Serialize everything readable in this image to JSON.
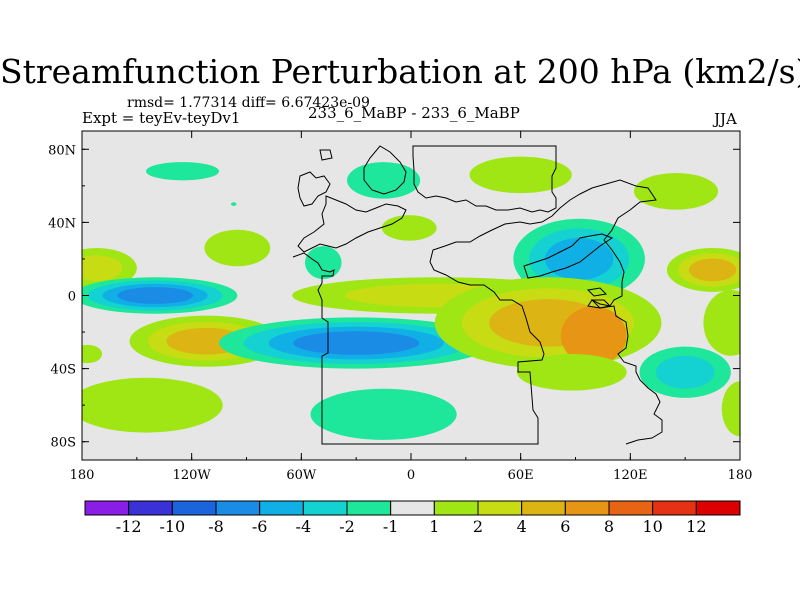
{
  "header": {
    "title": "Streamfunction Perturbation at 200 hPa (km2/s)",
    "rmsd_line": "rmsd= 1.77314 diff= 6.67423e-09",
    "left_label": "Expt = teyEv-teyDv1",
    "center_label": "233_6_MaBP - 233_6_MaBP",
    "right_label": "JJA"
  },
  "chart_data": {
    "type": "heatmap",
    "title": "Streamfunction Perturbation at 200 hPa (km2/s)",
    "xlabel": "",
    "ylabel": "",
    "xlim": [
      -180,
      180
    ],
    "ylim": [
      -90,
      90
    ],
    "x_ticks": [
      {
        "value": -180,
        "label": "180"
      },
      {
        "value": -120,
        "label": "120W"
      },
      {
        "value": -60,
        "label": "60W"
      },
      {
        "value": 0,
        "label": "0"
      },
      {
        "value": 60,
        "label": "60E"
      },
      {
        "value": 120,
        "label": "120E"
      },
      {
        "value": 180,
        "label": "180"
      }
    ],
    "y_ticks": [
      {
        "value": 80,
        "label": "80N"
      },
      {
        "value": 40,
        "label": "40N"
      },
      {
        "value": 0,
        "label": "0"
      },
      {
        "value": -40,
        "label": "40S"
      },
      {
        "value": -80,
        "label": "80S"
      }
    ],
    "levels": [
      -12,
      -10,
      -8,
      -6,
      -4,
      -2,
      -1,
      1,
      2,
      4,
      6,
      8,
      10,
      12
    ],
    "colorbar_colors": [
      "#8a1ee6",
      "#3a32d6",
      "#1a64dc",
      "#1a8ce6",
      "#10b0e6",
      "#14d2d2",
      "#1ee69a",
      "#e6e6e6",
      "#a0e614",
      "#c8dc14",
      "#dcb414",
      "#e69614",
      "#e66414",
      "#e63214",
      "#dc0000"
    ],
    "background_color": "#e6e6e6",
    "features": [
      {
        "lon": -125,
        "lat": 68,
        "rx": 20,
        "ry": 5,
        "levels": [
          -1
        ]
      },
      {
        "lon": -97,
        "lat": 50,
        "rx": 1.5,
        "ry": 1,
        "levels": [
          -1
        ]
      },
      {
        "lon": -15,
        "lat": 63,
        "rx": 20,
        "ry": 10,
        "levels": [
          -1
        ]
      },
      {
        "lon": -1,
        "lat": 37,
        "rx": 15,
        "ry": 7,
        "levels": [
          1
        ]
      },
      {
        "lon": 60,
        "lat": 66,
        "rx": 28,
        "ry": 10,
        "levels": [
          1
        ]
      },
      {
        "lon": 145,
        "lat": 57,
        "rx": 23,
        "ry": 10,
        "levels": [
          1
        ]
      },
      {
        "lon": -95,
        "lat": 26,
        "rx": 18,
        "ry": 10,
        "levels": [
          1
        ]
      },
      {
        "lon": -172,
        "lat": 15,
        "rx": 22,
        "ry": 11,
        "levels": [
          1,
          2
        ]
      },
      {
        "lon": -48,
        "lat": 18,
        "rx": 10,
        "ry": 9,
        "levels": [
          -1
        ]
      },
      {
        "lon": 92,
        "lat": 20,
        "rx": 36,
        "ry": 22,
        "levels": [
          -1,
          -2,
          -4
        ]
      },
      {
        "lon": 165,
        "lat": 14,
        "rx": 25,
        "ry": 12,
        "levels": [
          1,
          2,
          4
        ]
      },
      {
        "lon": -140,
        "lat": 0,
        "rx": 45,
        "ry": 10,
        "levels": [
          -1,
          -2,
          -4,
          -6
        ]
      },
      {
        "lon": 15,
        "lat": 0,
        "rx": 80,
        "ry": 10,
        "levels": [
          1,
          2
        ]
      },
      {
        "lon": -112,
        "lat": -25,
        "rx": 42,
        "ry": 14,
        "levels": [
          1,
          2,
          4
        ]
      },
      {
        "lon": -30,
        "lat": -26,
        "rx": 75,
        "ry": 14,
        "levels": [
          -1,
          -2,
          -4,
          -6
        ]
      },
      {
        "lon": 75,
        "lat": -15,
        "rx": 62,
        "ry": 25,
        "levels": [
          1,
          2,
          4
        ]
      },
      {
        "lon": 100,
        "lat": -22,
        "rx": 18,
        "ry": 16,
        "levels": [
          6
        ]
      },
      {
        "lon": 175,
        "lat": -15,
        "rx": 15,
        "ry": 18,
        "levels": [
          1
        ]
      },
      {
        "lon": -177,
        "lat": -32,
        "rx": 8,
        "ry": 5,
        "levels": [
          1
        ]
      },
      {
        "lon": 150,
        "lat": -42,
        "rx": 25,
        "ry": 14,
        "levels": [
          -1,
          -2
        ]
      },
      {
        "lon": 88,
        "lat": -42,
        "rx": 30,
        "ry": 10,
        "levels": [
          1
        ]
      },
      {
        "lon": -145,
        "lat": -60,
        "rx": 42,
        "ry": 15,
        "levels": [
          1
        ]
      },
      {
        "lon": -15,
        "lat": -65,
        "rx": 40,
        "ry": 14,
        "levels": [
          -1
        ]
      },
      {
        "lon": 180,
        "lat": -62,
        "rx": 10,
        "ry": 15,
        "levels": [
          1
        ]
      }
    ]
  }
}
